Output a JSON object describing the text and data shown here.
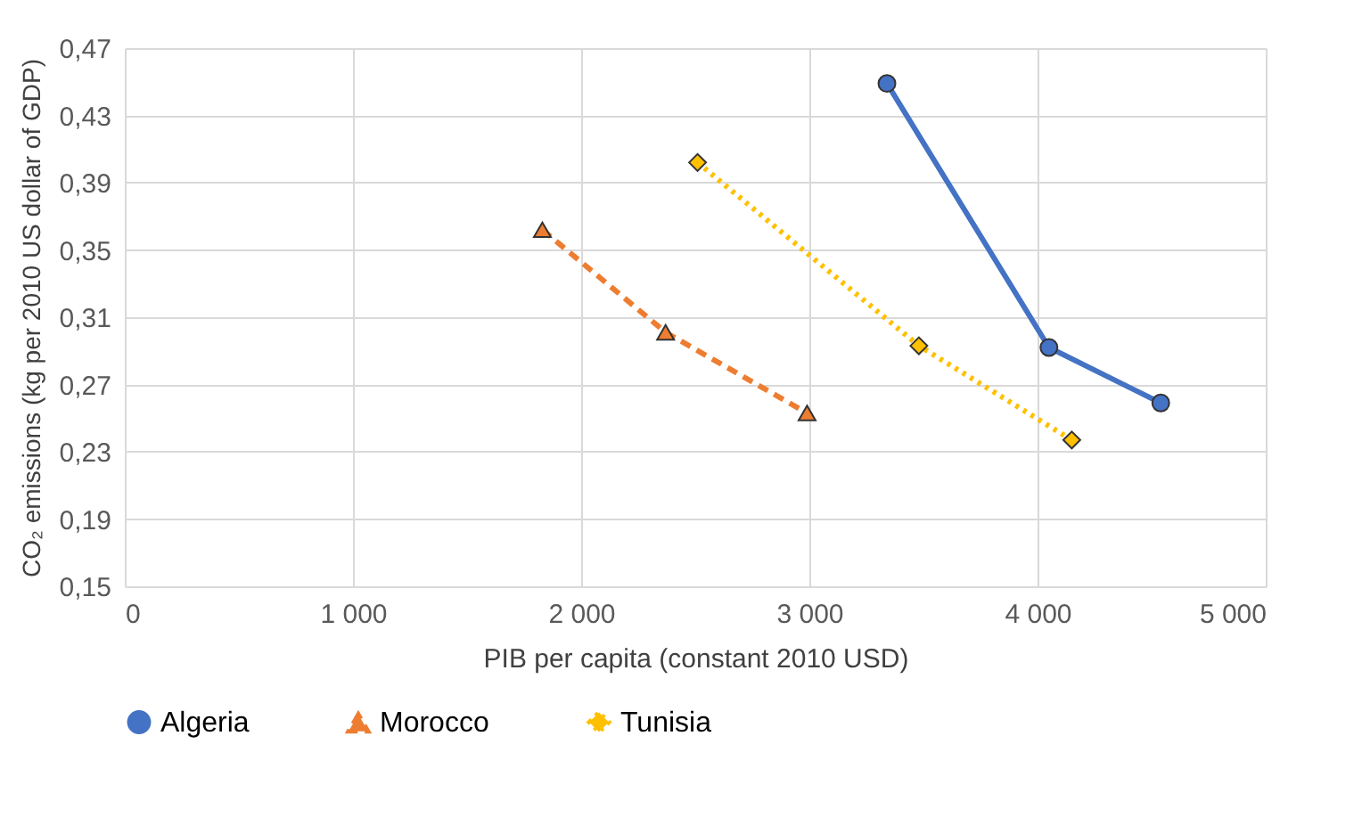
{
  "chart_data": {
    "type": "line",
    "xlabel": "PIB per capita (constant 2010 USD)",
    "ylabel": "CO₂ emissions (kg per 2010 US dollar of GDP)",
    "xlim": [
      0,
      5000
    ],
    "xticks": [
      0,
      {
        "value": 1000,
        "label": "1 000"
      },
      {
        "value": 2000,
        "label": "2 000"
      },
      {
        "value": 3000,
        "label": "3 000"
      },
      {
        "value": 4000,
        "label": "4 000"
      },
      {
        "value": 5000,
        "label": "5 000"
      }
    ],
    "ylim": [
      0.15,
      0.47
    ],
    "yticks": [
      {
        "value": 0.15,
        "label": "0,15"
      },
      {
        "value": 0.19,
        "label": "0,19"
      },
      {
        "value": 0.23,
        "label": "0,23"
      },
      {
        "value": 0.27,
        "label": "0,27"
      },
      {
        "value": 0.31,
        "label": "0,31"
      },
      {
        "value": 0.35,
        "label": "0,35"
      },
      {
        "value": 0.39,
        "label": "0,39"
      },
      {
        "value": 0.43,
        "label": "0,43"
      },
      {
        "value": 0.47,
        "label": "0,47"
      }
    ],
    "grid": true,
    "legend": "bottom",
    "series": [
      {
        "name": "Algeria",
        "color": "#4472c4",
        "marker": "circle",
        "line_style": "solid",
        "x": [
          3340,
          4050,
          4540
        ],
        "values": [
          0.449,
          0.292,
          0.259
        ]
      },
      {
        "name": "Morocco",
        "color": "#ed7d31",
        "marker": "triangle",
        "line_style": "dashed",
        "x": [
          1830,
          2370,
          2990
        ],
        "values": [
          0.362,
          0.301,
          0.253
        ]
      },
      {
        "name": "Tunisia",
        "color": "#ffc000",
        "marker": "diamond",
        "line_style": "dotted",
        "x": [
          2510,
          3480,
          4150
        ],
        "values": [
          0.402,
          0.293,
          0.237
        ]
      }
    ]
  }
}
